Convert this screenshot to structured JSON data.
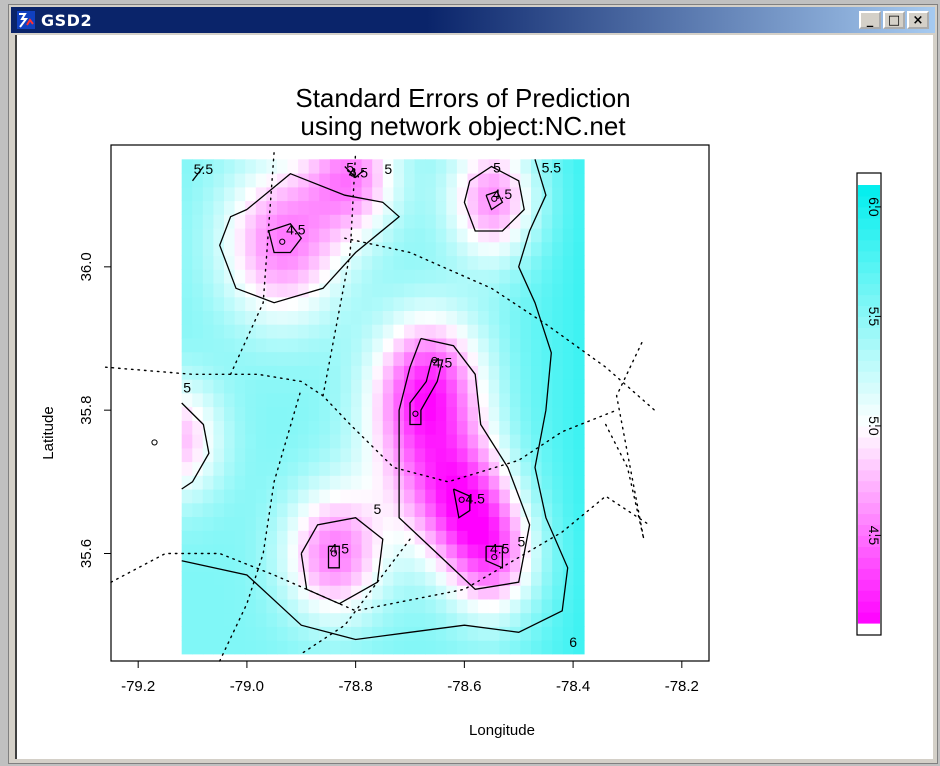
{
  "window": {
    "title": "GSD2",
    "minimize_label": "_",
    "maximize_label": "□",
    "close_label": "×"
  },
  "chart_data": {
    "type": "heatmap",
    "title_line1": "Standard Errors of Prediction",
    "title_line2": "using network object:NC.net",
    "xlabel": "Longitude",
    "ylabel": "Latitude",
    "xlim": [
      -79.25,
      -78.15
    ],
    "ylim": [
      35.45,
      36.17
    ],
    "x_ticks": [
      {
        "value": -79.2,
        "label": "-79.2"
      },
      {
        "value": -79.0,
        "label": "-79.0"
      },
      {
        "value": -78.8,
        "label": "-78.8"
      },
      {
        "value": -78.6,
        "label": "-78.6"
      },
      {
        "value": -78.4,
        "label": "-78.4"
      },
      {
        "value": -78.2,
        "label": "-78.2"
      }
    ],
    "y_ticks": [
      {
        "value": 35.6,
        "label": "35.6"
      },
      {
        "value": 35.8,
        "label": "35.8"
      },
      {
        "value": 36.0,
        "label": "36.0"
      }
    ],
    "colorbar": {
      "range": [
        4.1,
        6.1
      ],
      "ticks": [
        {
          "value": 4.5,
          "label": "4.5"
        },
        {
          "value": 5.0,
          "label": "5.0"
        },
        {
          "value": 5.5,
          "label": "5.5"
        },
        {
          "value": 6.0,
          "label": "6.0"
        }
      ],
      "low_color": "#ff00ff",
      "mid_color": "#ffffff",
      "high_color": "#00eeee"
    },
    "grid_extent": {
      "x": [
        -79.12,
        -78.38
      ],
      "y": [
        35.46,
        36.15
      ]
    },
    "stations": [
      {
        "x": -78.935,
        "y": 36.035
      },
      {
        "x": -78.805,
        "y": 36.13
      },
      {
        "x": -78.545,
        "y": 36.095
      },
      {
        "x": -78.655,
        "y": 35.87
      },
      {
        "x": -78.69,
        "y": 35.795
      },
      {
        "x": -78.605,
        "y": 35.675
      },
      {
        "x": -78.545,
        "y": 35.595
      },
      {
        "x": -78.84,
        "y": 35.6
      },
      {
        "x": -79.17,
        "y": 35.755
      }
    ],
    "contour_labels": [
      {
        "x": -79.08,
        "y": 36.135,
        "label": "5.5"
      },
      {
        "x": -78.81,
        "y": 36.137,
        "label": "5"
      },
      {
        "x": -78.795,
        "y": 36.13,
        "label": "4.5"
      },
      {
        "x": -78.74,
        "y": 36.135,
        "label": "5"
      },
      {
        "x": -78.91,
        "y": 36.05,
        "label": "4.5"
      },
      {
        "x": -78.54,
        "y": 36.137,
        "label": "5"
      },
      {
        "x": -78.53,
        "y": 36.1,
        "label": "4.5"
      },
      {
        "x": -78.44,
        "y": 36.137,
        "label": "5.5"
      },
      {
        "x": -78.64,
        "y": 35.865,
        "label": "4.5"
      },
      {
        "x": -79.11,
        "y": 35.83,
        "label": "5"
      },
      {
        "x": -78.76,
        "y": 35.66,
        "label": "5"
      },
      {
        "x": -78.58,
        "y": 35.675,
        "label": "4.5"
      },
      {
        "x": -78.83,
        "y": 35.605,
        "label": "4.5"
      },
      {
        "x": -78.535,
        "y": 35.605,
        "label": "4.5"
      },
      {
        "x": -78.495,
        "y": 35.615,
        "label": "5"
      },
      {
        "x": -78.4,
        "y": 35.475,
        "label": "6"
      }
    ]
  }
}
